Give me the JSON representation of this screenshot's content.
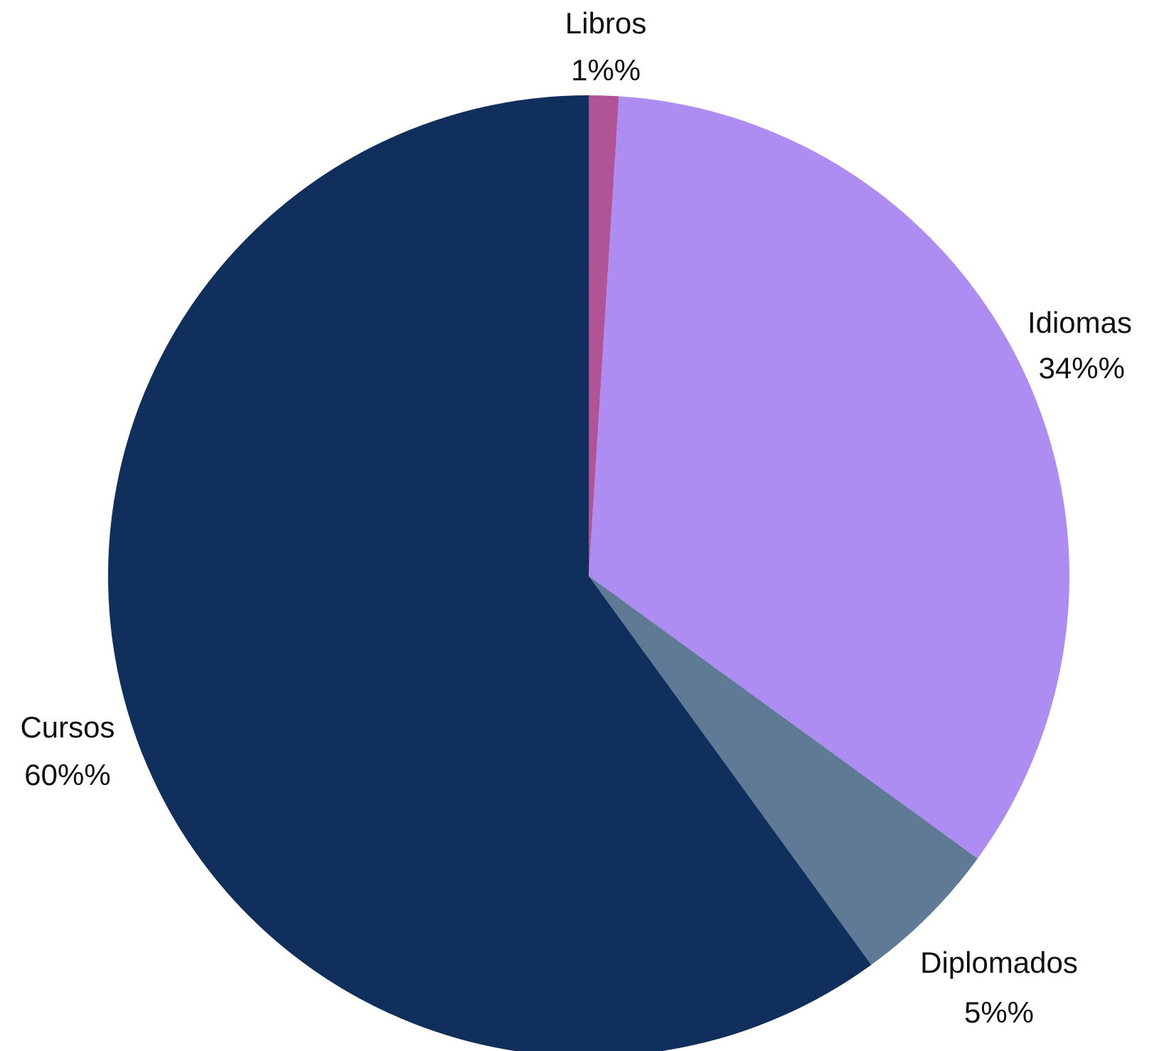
{
  "chart_data": {
    "type": "pie",
    "title": "",
    "start_angle_deg": 0,
    "direction": "clockwise",
    "slices": [
      {
        "label": "Libros",
        "value": 1,
        "value_label": "1%%",
        "color": "#b05496"
      },
      {
        "label": "Idiomas",
        "value": 34,
        "value_label": "34%%",
        "color": "#ae8df3"
      },
      {
        "label": "Diplomados",
        "value": 5,
        "value_label": "5%%",
        "color": "#5e7a94"
      },
      {
        "label": "Cursos",
        "value": 60,
        "value_label": "60%%",
        "color": "#112f5c"
      }
    ]
  }
}
